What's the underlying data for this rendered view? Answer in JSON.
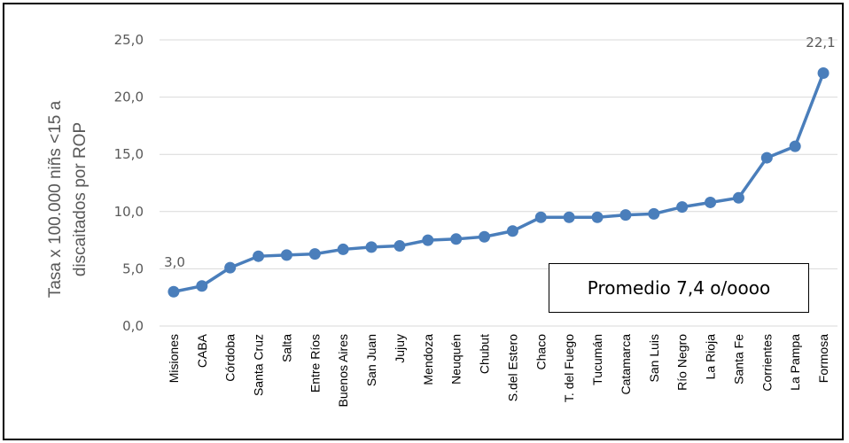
{
  "chart_data": {
    "type": "line",
    "categories": [
      "Misiones",
      "CABA",
      "Córdoba",
      "Santa Cruz",
      "Salta",
      "Entre Ríos",
      "Buenos Aires",
      "San Juan",
      "Jujuy",
      "Mendoza",
      "Neuquén",
      "Chubut",
      "S.del Estero",
      "Chaco",
      "T. del Fuego",
      "Tucumán",
      "Catamarca",
      "San Luis",
      "Río Negro",
      "La Rioja",
      "Santa Fe",
      "Corrientes",
      "La Pampa",
      "Formosa"
    ],
    "series": [
      {
        "values": [
          3.0,
          3.5,
          5.1,
          6.1,
          6.2,
          6.3,
          6.7,
          6.9,
          7.0,
          7.5,
          7.6,
          7.8,
          8.3,
          9.5,
          9.5,
          9.5,
          9.7,
          9.8,
          10.4,
          10.8,
          11.2,
          14.7,
          15.7,
          22.1
        ]
      }
    ],
    "ylabel_line1": "Tasa x 100.000 niñs  <15 a",
    "ylabel_line2": "discaitados por ROP",
    "ylim": [
      0,
      25
    ],
    "yticks": [
      "0,0",
      "5,0",
      "10,0",
      "15,0",
      "20,0",
      "25,0"
    ],
    "data_labels": {
      "first": "3,0",
      "last": "22,1"
    },
    "note": "Promedio 7,4 o/oooo",
    "grid": true,
    "line_color": "#4a7ebb",
    "grid_color": "#d9d9d9"
  }
}
